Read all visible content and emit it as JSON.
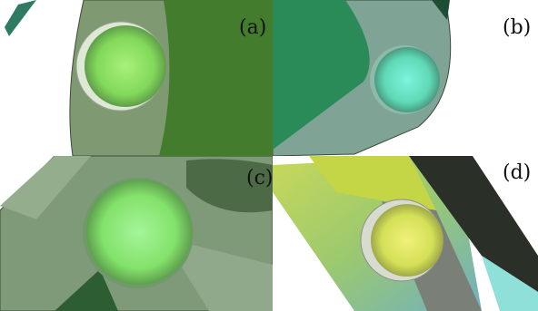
{
  "panels": [
    {
      "id": "a",
      "label": "(a)",
      "sphere_color": "#8fe05a"
    },
    {
      "id": "b",
      "label": "(b)",
      "sphere_color": "#6ee6b8"
    },
    {
      "id": "c",
      "label": "(c)",
      "sphere_color": "#86e86a"
    },
    {
      "id": "d",
      "label": "(d)",
      "sphere_color": "#d8e85a"
    }
  ],
  "colors": {
    "sage": "#7e9f73",
    "dark_green": "#3b7a2a",
    "teal_green": "#2b8a52",
    "charcoal": "#2a2f28"
  }
}
